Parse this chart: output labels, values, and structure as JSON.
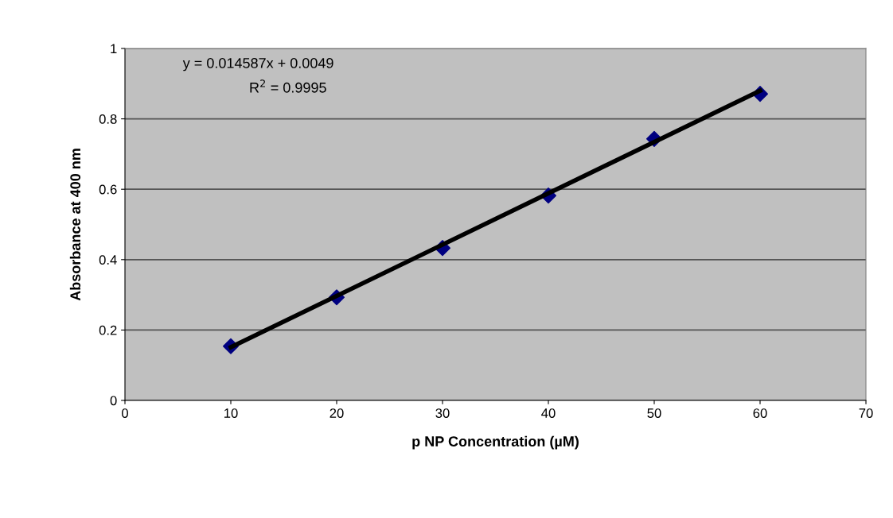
{
  "chart_data": {
    "type": "scatter",
    "xlabel": "p NP Concentration (µM)",
    "ylabel": "Absorbance at 400 nm",
    "x": [
      10,
      20,
      30,
      40,
      50,
      60
    ],
    "series": [
      {
        "color": "#000080",
        "marker": "diamond",
        "values": [
          0.154,
          0.293,
          0.433,
          0.582,
          0.743,
          0.871
        ]
      },
      {
        "type": "line",
        "color": "#000000",
        "marker": "none",
        "x": [
          10,
          60
        ],
        "values": [
          0.151,
          0.88
        ]
      }
    ],
    "annotations": [
      "y = 0.014587x + 0.0049",
      "R$^{2}$ = 0.9995"
    ],
    "xlim": [
      0,
      70
    ],
    "xticks": [
      0,
      10,
      20,
      30,
      40,
      50,
      60,
      70
    ],
    "ylim": [
      0,
      1
    ],
    "yticks": [
      0,
      0.2,
      0.4,
      0.6,
      0.8,
      1
    ],
    "grid": "y",
    "legend": false
  }
}
